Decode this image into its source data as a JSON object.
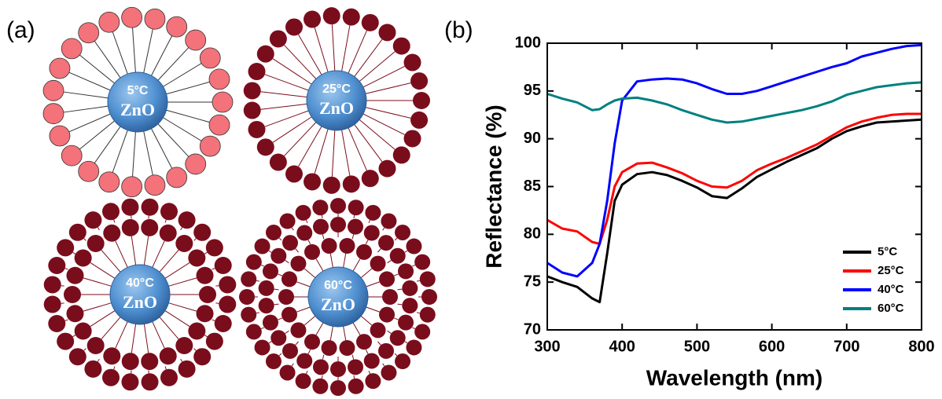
{
  "panel_a": {
    "label": "(a)",
    "particles": [
      {
        "temperature": "5°C",
        "core": "ZnO"
      },
      {
        "temperature": "25°C",
        "core": "ZnO"
      },
      {
        "temperature": "40°C",
        "core": "ZnO"
      },
      {
        "temperature": "60°C",
        "core": "ZnO"
      }
    ]
  },
  "chart_data": {
    "type": "line",
    "label": "(b)",
    "xlabel": "Wavelength (nm)",
    "ylabel": "Reflectance (%)",
    "x": [
      300,
      320,
      340,
      360,
      370,
      380,
      390,
      400,
      420,
      440,
      460,
      480,
      500,
      520,
      540,
      560,
      580,
      600,
      620,
      640,
      660,
      680,
      700,
      720,
      740,
      760,
      780,
      800
    ],
    "series": [
      {
        "name": "5°C",
        "color": "#000000",
        "values": [
          75.6,
          75.0,
          74.5,
          73.3,
          72.9,
          78.0,
          83.5,
          85.2,
          86.3,
          86.5,
          86.2,
          85.6,
          84.9,
          84.0,
          83.8,
          84.8,
          86.0,
          86.8,
          87.6,
          88.3,
          89.0,
          90.0,
          90.8,
          91.3,
          91.7,
          91.8,
          91.9,
          92.0
        ]
      },
      {
        "name": "25°C",
        "color": "#ff0000",
        "values": [
          81.5,
          80.6,
          80.3,
          79.2,
          79.0,
          81.5,
          85.0,
          86.5,
          87.4,
          87.5,
          87.0,
          86.4,
          85.6,
          85.0,
          84.9,
          85.6,
          86.7,
          87.4,
          88.0,
          88.7,
          89.4,
          90.3,
          91.2,
          91.8,
          92.2,
          92.5,
          92.6,
          92.6
        ]
      },
      {
        "name": "40°C",
        "color": "#0000ff",
        "values": [
          77.0,
          76.0,
          75.6,
          77.0,
          79.0,
          83.5,
          89.5,
          94.0,
          96.0,
          96.2,
          96.3,
          96.2,
          95.8,
          95.2,
          94.7,
          94.7,
          95.0,
          95.5,
          96.0,
          96.5,
          97.0,
          97.5,
          97.9,
          98.6,
          99.0,
          99.4,
          99.7,
          99.8
        ]
      },
      {
        "name": "60°C",
        "color": "#008080",
        "values": [
          94.7,
          94.2,
          93.8,
          93.0,
          93.1,
          93.6,
          94.0,
          94.2,
          94.3,
          94.0,
          93.6,
          93.0,
          92.5,
          92.0,
          91.7,
          91.8,
          92.1,
          92.4,
          92.7,
          93.0,
          93.4,
          93.9,
          94.6,
          95.0,
          95.4,
          95.6,
          95.8,
          95.9
        ]
      }
    ],
    "xlim": [
      300,
      800
    ],
    "xticks": [
      300,
      400,
      500,
      600,
      700,
      800
    ],
    "ylim": [
      70,
      100
    ],
    "yticks": [
      70,
      75,
      80,
      85,
      90,
      95,
      100
    ],
    "legend": "lower right"
  }
}
